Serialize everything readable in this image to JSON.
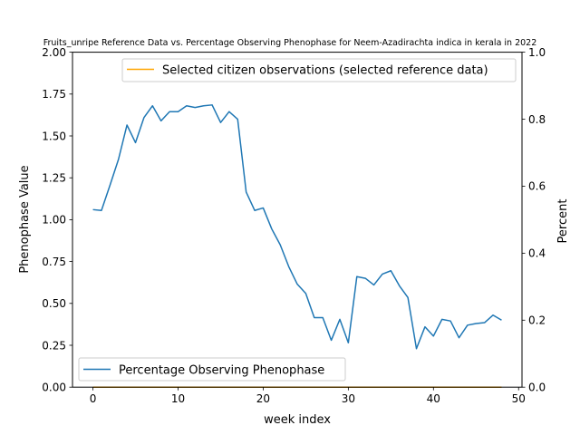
{
  "chart_data": {
    "type": "line",
    "title": "Fruits_unripe Reference Data vs. Percentage Observing Phenophase for Neem-Azadirachta indica in kerala in 2022",
    "xlabel": "week index",
    "ylabel_left": "Phenophase Value",
    "ylabel_right": "Percent",
    "xlim": [
      -2.4,
      50.4
    ],
    "ylim_left": [
      0,
      2.0
    ],
    "ylim_right": [
      0,
      1.0
    ],
    "x_ticks": [
      0,
      10,
      20,
      30,
      40,
      50
    ],
    "y_ticks_left": [
      0.0,
      0.25,
      0.5,
      0.75,
      1.0,
      1.25,
      1.5,
      1.75,
      2.0
    ],
    "y_ticks_right": [
      0.0,
      0.2,
      0.4,
      0.6,
      0.8,
      1.0
    ],
    "x_tick_labels": [
      "0",
      "10",
      "20",
      "30",
      "40",
      "50"
    ],
    "y_tick_labels_left": [
      "0.00",
      "0.25",
      "0.50",
      "0.75",
      "1.00",
      "1.25",
      "1.50",
      "1.75",
      "2.00"
    ],
    "y_tick_labels_right": [
      "0.0",
      "0.2",
      "0.4",
      "0.6",
      "0.8",
      "1.0"
    ],
    "series": [
      {
        "name": "Selected citizen observations (selected reference data)",
        "axis": "right",
        "color": "#ffa500",
        "x": [
          0,
          48
        ],
        "y": [
          0,
          0
        ]
      },
      {
        "name": "Percentage Observing Phenophase",
        "axis": "left",
        "color": "#1f77b4",
        "x": [
          0,
          1,
          2,
          3,
          4,
          5,
          6,
          7,
          8,
          9,
          10,
          11,
          12,
          13,
          14,
          15,
          16,
          17,
          18,
          19,
          20,
          21,
          22,
          23,
          24,
          25,
          26,
          27,
          28,
          29,
          30,
          31,
          32,
          33,
          34,
          35,
          36,
          37,
          38,
          39,
          40,
          41,
          42,
          43,
          44,
          45,
          46,
          47,
          48
        ],
        "y": [
          1.06,
          1.055,
          1.205,
          1.36,
          1.565,
          1.46,
          1.61,
          1.68,
          1.59,
          1.645,
          1.645,
          1.68,
          1.67,
          1.68,
          1.685,
          1.58,
          1.645,
          1.6,
          1.165,
          1.055,
          1.07,
          0.945,
          0.85,
          0.72,
          0.615,
          0.56,
          0.415,
          0.415,
          0.28,
          0.405,
          0.265,
          0.66,
          0.65,
          0.61,
          0.675,
          0.695,
          0.605,
          0.535,
          0.23,
          0.36,
          0.305,
          0.405,
          0.395,
          0.295,
          0.37,
          0.38,
          0.385,
          0.43,
          0.4
        ]
      }
    ],
    "legends": [
      {
        "placement": "upper-right",
        "entries": [
          "Selected citizen observations (selected reference data)"
        ]
      },
      {
        "placement": "lower-left",
        "entries": [
          "Percentage Observing Phenophase"
        ]
      }
    ]
  }
}
